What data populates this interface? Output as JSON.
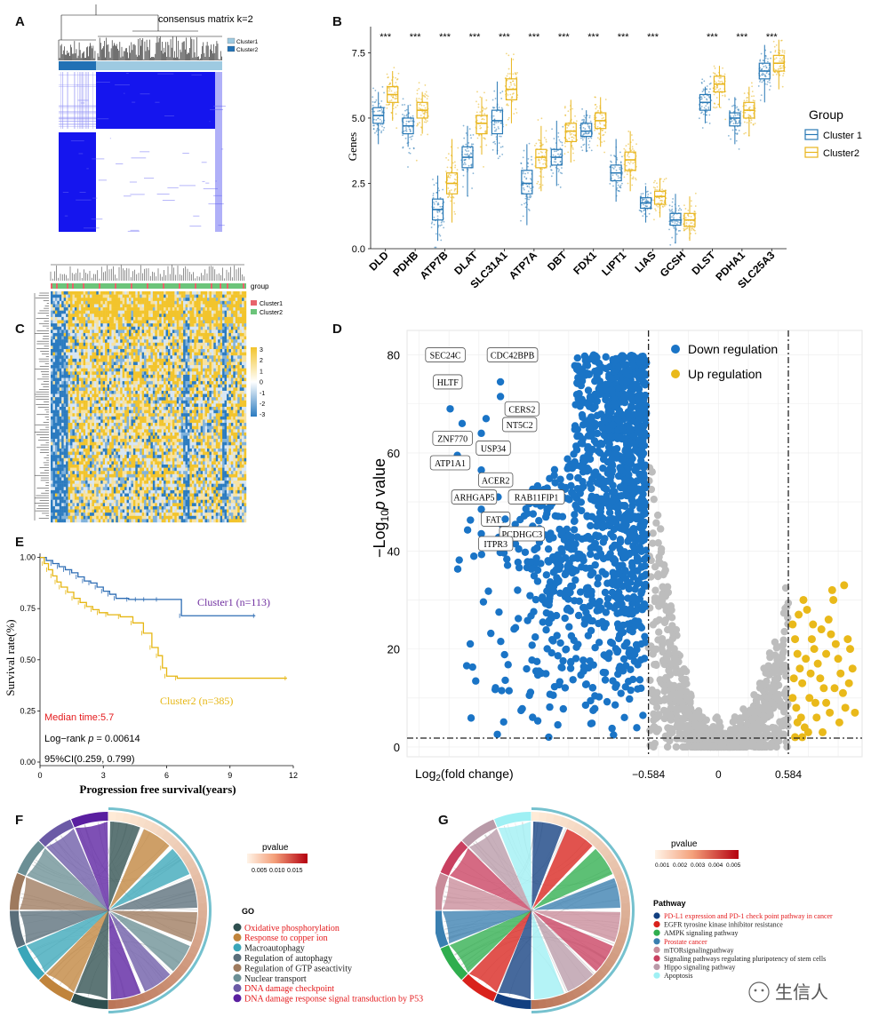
{
  "panels": {
    "A": {
      "label": "A",
      "title": "consensus matrix k=2",
      "legend": [
        "Cluster1",
        "Cluster2"
      ],
      "colors": {
        "cluster1": "#9ecae1",
        "cluster2": "#2171b5",
        "matrix": "#1010ee"
      }
    },
    "B": {
      "label": "B",
      "ylabel": "Genes",
      "legend_title": "Group",
      "legend": [
        "Cluster 1",
        "Cluster2"
      ],
      "significance": [
        "***",
        "***",
        "***",
        "***",
        "***",
        "***",
        "***",
        "***",
        "***",
        "***",
        "",
        "***",
        "***",
        "***"
      ]
    },
    "C": {
      "label": "C",
      "group_label": "group",
      "legend": [
        "Cluster1",
        "Cluster2"
      ],
      "scale_ticks": [
        "3",
        "2",
        "1",
        "0",
        "-1",
        "-2",
        "-3"
      ],
      "colors": {
        "cluster1": "#e8636b",
        "cluster2": "#6cc47a",
        "high": "#f2c42c",
        "low": "#2b7bc0"
      }
    },
    "D": {
      "label": "D",
      "ylabel_prefix": "−Log",
      "ylabel_sub": "10",
      "ylabel_suffix": "p value",
      "xlabel_prefix": "Log",
      "xlabel_sub": "2",
      "xlabel_suffix": "(fold change)",
      "legend": [
        "Down regulation",
        "Up regulation"
      ],
      "genes": [
        "SEC24C",
        "CDC42BPB",
        "HLTF",
        "CERS2",
        "NT5C2",
        "ZNF770",
        "USP34",
        "ATP1A1",
        "ACER2",
        "ARHGAP5",
        "RAB11FIP1",
        "FAT1",
        "PCDHGC3",
        "ITPR3"
      ],
      "colors": {
        "down": "#1a74c6",
        "up": "#e9b91a",
        "ns": "#bdbdbd"
      }
    },
    "E": {
      "label": "E",
      "median": "Median time:5.7",
      "logrank": "Log−rank ",
      "logrank_p": "p",
      "logrank_val": " = 0.00614",
      "ci": "95%CI(0.259, 0.799)"
    },
    "F": {
      "label": "F",
      "scale_title": "pvalue",
      "scale_ticks": [
        "0.005",
        "0.010",
        "0.015"
      ],
      "legend_title": "GO",
      "terms": [
        {
          "name": "Oxidative phosphorylation",
          "color": "#2f4f4f",
          "highlight": true
        },
        {
          "name": "Response to copper ion",
          "color": "#c0843c",
          "highlight": true
        },
        {
          "name": "Macroautophagy",
          "color": "#3aa6b9",
          "highlight": false
        },
        {
          "name": "Regulation of autophagy",
          "color": "#5a6e7a",
          "highlight": false
        },
        {
          "name": "Regulation of GTP aseactivity",
          "color": "#9e7a5e",
          "highlight": false
        },
        {
          "name": "Nuclear transport",
          "color": "#6b8f95",
          "highlight": false
        },
        {
          "name": "DNA damage checkpoint",
          "color": "#6b5aa6",
          "highlight": true
        },
        {
          "name": "DNA damage response signal transduction by P53",
          "color": "#5a1fa0",
          "highlight": true
        }
      ]
    },
    "G": {
      "label": "G",
      "scale_title": "pvalue",
      "scale_ticks": [
        "0.001",
        "0.002",
        "0.003",
        "0.004",
        "0.005"
      ],
      "legend_title": "Pathway",
      "terms": [
        {
          "name": "PD-L1 expression and PD-1 check point pathway in cancer",
          "color": "#123f80",
          "highlight": true
        },
        {
          "name": "EGFR tyrosine kinase inhibitor resistance",
          "color": "#d9221c",
          "highlight": false
        },
        {
          "name": "AMPK signaling pathway",
          "color": "#2fae4e",
          "highlight": false
        },
        {
          "name": "Prostate cancer",
          "color": "#3a7fb0",
          "highlight": true
        },
        {
          "name": "mTORsignalingpathway",
          "color": "#c98c9a",
          "highlight": false
        },
        {
          "name": "Signaling pathways regulating pluripotency of stem cells",
          "color": "#c94060",
          "highlight": false
        },
        {
          "name": "Hippo signaling pathway",
          "color": "#b99aa8",
          "highlight": false
        },
        {
          "name": "Apoptosis",
          "color": "#9ff0f4",
          "highlight": false
        }
      ]
    },
    "watermark": "生信人"
  },
  "chart_data": [
    {
      "type": "boxplot",
      "panel": "B",
      "categories": [
        "DLD",
        "PDHB",
        "ATP7B",
        "DLAT",
        "SLC31A1",
        "ATP7A",
        "DBT",
        "FDX1",
        "LIPT1",
        "LIAS",
        "GCSH",
        "DLST",
        "PDHA1",
        "SLC25A3"
      ],
      "ylabel": "Genes",
      "ylim": [
        0,
        8.5
      ],
      "yticks": [
        0.0,
        2.5,
        5.0,
        7.5
      ],
      "series": [
        {
          "name": "Cluster 1",
          "color": "#2878b5",
          "median": [
            5.1,
            4.7,
            1.5,
            3.5,
            4.9,
            2.5,
            3.5,
            4.5,
            2.9,
            1.75,
            1.1,
            5.6,
            5.0,
            6.8
          ],
          "q1": [
            4.8,
            4.4,
            1.1,
            3.1,
            4.4,
            2.1,
            3.2,
            4.3,
            2.6,
            1.55,
            0.9,
            5.3,
            4.7,
            6.5
          ],
          "q3": [
            5.4,
            5.0,
            1.9,
            3.9,
            5.3,
            3.0,
            3.8,
            4.8,
            3.2,
            1.95,
            1.35,
            5.9,
            5.2,
            7.1
          ],
          "low": [
            4.0,
            3.9,
            0.3,
            2.0,
            3.6,
            0.9,
            2.4,
            3.7,
            1.8,
            1.0,
            0.2,
            4.8,
            4.0,
            5.6
          ],
          "high": [
            6.0,
            5.5,
            2.8,
            4.7,
            6.4,
            4.0,
            4.9,
            5.3,
            4.2,
            2.4,
            2.1,
            6.2,
            5.8,
            7.8
          ]
        },
        {
          "name": "Cluster2",
          "color": "#e8b51c",
          "median": [
            5.9,
            5.3,
            2.5,
            4.8,
            6.1,
            3.5,
            4.5,
            4.9,
            3.4,
            2.0,
            1.1,
            6.3,
            5.3,
            7.1
          ],
          "q1": [
            5.6,
            5.0,
            2.1,
            4.4,
            5.7,
            3.1,
            4.1,
            4.6,
            3.0,
            1.7,
            0.85,
            6.0,
            5.0,
            6.8
          ],
          "q3": [
            6.2,
            5.6,
            2.9,
            5.1,
            6.5,
            3.8,
            4.8,
            5.2,
            3.7,
            2.2,
            1.35,
            6.6,
            5.6,
            7.4
          ],
          "low": [
            4.9,
            4.4,
            1.0,
            3.6,
            4.8,
            2.2,
            3.3,
            3.9,
            2.2,
            1.2,
            0.3,
            5.4,
            4.3,
            6.1
          ],
          "high": [
            6.8,
            6.0,
            4.2,
            5.8,
            7.3,
            4.7,
            5.7,
            5.8,
            4.5,
            2.7,
            2.0,
            7.0,
            6.2,
            8.0
          ]
        }
      ],
      "significance": [
        "***",
        "***",
        "***",
        "***",
        "***",
        "***",
        "***",
        "***",
        "***",
        "***",
        "",
        "***",
        "***",
        "***"
      ],
      "legend_placement": "right"
    },
    {
      "type": "scatter",
      "panel": "D",
      "subtype": "volcano",
      "xlabel": "Log2(fold change)",
      "ylabel": "−Log10p value",
      "xlim": [
        -2.6,
        1.2
      ],
      "ylim": [
        -2,
        85
      ],
      "xticks": [
        -0.584,
        0,
        0.584
      ],
      "yticks": [
        0,
        20,
        40,
        60,
        80
      ],
      "thresholds": {
        "x": [
          -0.584,
          0.584
        ],
        "y": 1.8
      },
      "series": [
        {
          "name": "Down regulation",
          "color": "#1a74c6"
        },
        {
          "name": "Up regulation",
          "color": "#e9b91a"
        }
      ],
      "up_points": [
        [
          0.62,
          25
        ],
        [
          0.64,
          22
        ],
        [
          0.66,
          19
        ],
        [
          0.68,
          16
        ],
        [
          0.7,
          13
        ],
        [
          0.62,
          10
        ],
        [
          0.65,
          8
        ],
        [
          0.69,
          6
        ],
        [
          0.72,
          4
        ],
        [
          0.75,
          3
        ],
        [
          0.78,
          22
        ],
        [
          0.8,
          20
        ],
        [
          0.83,
          17
        ],
        [
          0.85,
          14
        ],
        [
          0.88,
          12
        ],
        [
          0.9,
          9
        ],
        [
          0.93,
          7
        ],
        [
          0.86,
          24
        ],
        [
          0.92,
          26
        ],
        [
          0.96,
          30
        ],
        [
          0.98,
          21
        ],
        [
          1.0,
          18
        ],
        [
          1.02,
          15
        ],
        [
          1.04,
          11
        ],
        [
          1.06,
          8
        ],
        [
          1.08,
          22
        ],
        [
          1.1,
          20
        ],
        [
          1.12,
          16
        ],
        [
          1.14,
          7
        ],
        [
          0.95,
          32
        ],
        [
          1.05,
          33
        ],
        [
          0.74,
          28
        ],
        [
          0.79,
          25
        ],
        [
          0.67,
          27
        ],
        [
          0.71,
          30
        ],
        [
          0.63,
          14
        ],
        [
          0.66,
          5
        ],
        [
          0.7,
          2
        ],
        [
          0.76,
          10
        ],
        [
          0.82,
          6
        ],
        [
          0.87,
          3
        ],
        [
          0.97,
          12
        ],
        [
          1.01,
          5
        ],
        [
          0.9,
          19
        ],
        [
          0.94,
          23
        ],
        [
          1.09,
          13
        ],
        [
          0.77,
          15
        ],
        [
          0.73,
          18
        ],
        [
          0.64,
          2
        ],
        [
          0.81,
          9
        ]
      ],
      "labeled_genes": [
        {
          "gene": "SEC24C",
          "x": -2.32,
          "y": 74
        },
        {
          "gene": "CDC42BPB",
          "x": -1.82,
          "y": 74.5
        },
        {
          "gene": "HLTF",
          "x": -2.24,
          "y": 69
        },
        {
          "gene": "CERS2",
          "x": -1.82,
          "y": 71.5
        },
        {
          "gene": "NT5C2",
          "x": -1.94,
          "y": 67
        },
        {
          "gene": "ZNF770",
          "x": -2.14,
          "y": 66
        },
        {
          "gene": "USP34",
          "x": -1.98,
          "y": 64
        },
        {
          "gene": "ATP1A1",
          "x": -2.18,
          "y": 59.5
        },
        {
          "gene": "ACER2",
          "x": -1.98,
          "y": 56.5
        },
        {
          "gene": "ARHGAP5",
          "x": -1.84,
          "y": 51
        },
        {
          "gene": "RAB11FIP1",
          "x": -1.98,
          "y": 48.5
        },
        {
          "gene": "FAT1",
          "x": -1.88,
          "y": 47
        },
        {
          "gene": "PCDHGC3",
          "x": -1.78,
          "y": 46.5
        },
        {
          "gene": "ITPR3",
          "x": -1.98,
          "y": 43.5
        }
      ],
      "legend_placement": "top-right"
    },
    {
      "type": "line",
      "panel": "E",
      "subtype": "kaplan-meier",
      "xlabel": "Progression free survival(years)",
      "ylabel": "Survival rate(%)",
      "xlim": [
        0,
        12
      ],
      "ylim": [
        0,
        1.02
      ],
      "xticks": [
        0,
        3,
        6,
        9,
        12
      ],
      "yticks": [
        0.0,
        0.25,
        0.5,
        0.75,
        1.0
      ],
      "ytick_labels": [
        "0.00",
        "0.25",
        "0.50",
        "0.75",
        "1.00"
      ],
      "series": [
        {
          "name": "Cluster1 (n=113)",
          "color": "#2e6db4",
          "label_color": "#7030a0",
          "x": [
            0,
            0.3,
            0.6,
            0.9,
            1.2,
            1.5,
            1.8,
            2.1,
            2.4,
            2.7,
            3.0,
            3.3,
            3.6,
            4.2,
            4.6,
            5.0,
            5.6,
            6.7,
            10.2
          ],
          "y": [
            1.0,
            0.985,
            0.97,
            0.955,
            0.94,
            0.925,
            0.905,
            0.885,
            0.875,
            0.855,
            0.835,
            0.82,
            0.8,
            0.795,
            0.795,
            0.795,
            0.795,
            0.715,
            0.715
          ]
        },
        {
          "name": "Cluster2 (n=385)",
          "color": "#e6b612",
          "label_color": "#e6b612",
          "x": [
            0,
            0.2,
            0.4,
            0.6,
            0.8,
            1.0,
            1.3,
            1.6,
            1.9,
            2.2,
            2.5,
            2.8,
            3.2,
            3.8,
            4.4,
            4.9,
            5.3,
            5.6,
            5.8,
            6.0,
            6.5,
            11.7
          ],
          "y": [
            1.0,
            0.97,
            0.94,
            0.91,
            0.88,
            0.855,
            0.83,
            0.8,
            0.78,
            0.76,
            0.745,
            0.73,
            0.72,
            0.71,
            0.68,
            0.63,
            0.56,
            0.52,
            0.46,
            0.42,
            0.41,
            0.41
          ]
        }
      ],
      "annotations": [
        "Median time:5.7",
        "Log−rank p = 0.00614",
        "95%CI(0.259, 0.799)"
      ]
    }
  ]
}
